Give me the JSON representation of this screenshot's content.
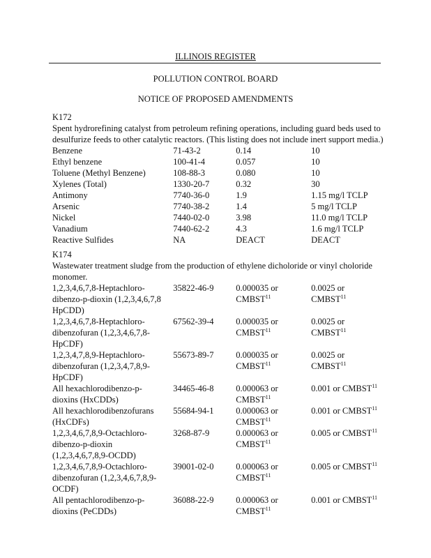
{
  "header": {
    "register": "ILLINOIS REGISTER",
    "board": "POLLUTION CONTROL BOARD",
    "notice": "NOTICE OF PROPOSED AMENDMENTS"
  },
  "k172": {
    "code": "K172",
    "description": [
      "Spent hydrorefining catalyst from petroleum refining operations, including guard beds used to",
      "desulfurize feeds to other catalytic reactors.  (This listing does not include inert support media.)"
    ],
    "rows": [
      {
        "name": "Benzene",
        "cas": "71-43-2",
        "ww": "0.14",
        "nww": "10"
      },
      {
        "name": "Ethyl benzene",
        "cas": "100-41-4",
        "ww": "0.057",
        "nww": "10"
      },
      {
        "name": "Toluene (Methyl Benzene)",
        "cas": "108-88-3",
        "ww": "0.080",
        "nww": "10"
      },
      {
        "name": "Xylenes (Total)",
        "cas": "1330-20-7",
        "ww": "0.32",
        "nww": "30"
      },
      {
        "name": "Antimony",
        "cas": "7740-36-0",
        "ww": "1.9",
        "nww": "1.15 mg/l TCLP"
      },
      {
        "name": "Arsenic",
        "cas": "7740-38-2",
        "ww": "1.4",
        "nww": "5 mg/l TCLP"
      },
      {
        "name": "Nickel",
        "cas": "7440-02-0",
        "ww": "3.98",
        "nww": "11.0 mg/l TCLP"
      },
      {
        "name": "Vanadium",
        "cas": "7440-62-2",
        "ww": "4.3",
        "nww": "1.6 mg/l TCLP"
      },
      {
        "name": "Reactive Sulfides",
        "cas": "NA",
        "ww": "DEACT",
        "nww": "DEACT"
      }
    ]
  },
  "k174": {
    "code": "K174",
    "description": [
      "Wastewater treatment sludge from the production of ethylene dicholoride or vinyl choloride",
      "monomer."
    ],
    "superscript": "11",
    "rows": [
      {
        "name": [
          "1,2,3,4,6,7,8-Heptachloro-",
          "dibenzo-p-dioxin (1,2,3,4,6,7,8",
          "HpCDD)"
        ],
        "cas": "35822-46-9",
        "ww": [
          "0.000035 or",
          "CMBST"
        ],
        "nww": [
          "0.0025 or",
          "CMBST"
        ]
      },
      {
        "name": [
          "1,2,3,4,6,7,8-Heptachloro-",
          "dibenzofuran (1,2,3,4,6,7,8-",
          "HpCDF)"
        ],
        "cas": "67562-39-4",
        "ww": [
          "0.000035 or",
          "CMBST"
        ],
        "nww": [
          "0.0025 or",
          "CMBST"
        ]
      },
      {
        "name": [
          "1,2,3,4,7,8,9-Heptachloro-",
          "dibenzofuran (1,2,3,4,7,8,9-",
          "HpCDF)"
        ],
        "cas": "55673-89-7",
        "ww": [
          "0.000035 or",
          "CMBST"
        ],
        "nww": [
          "0.0025 or",
          "CMBST"
        ]
      },
      {
        "name": [
          "All hexachlorodibenzo-p-",
          "dioxins (HxCDDs)"
        ],
        "cas": "34465-46-8",
        "ww": [
          "0.000063 or",
          "CMBST"
        ],
        "nww": [
          "0.001 or CMBST"
        ]
      },
      {
        "name": [
          "All hexachlorodibenzofurans",
          "(HxCDFs)"
        ],
        "cas": "55684-94-1",
        "ww": [
          "0.000063 or",
          "CMBST"
        ],
        "nww": [
          "0.001 or CMBST"
        ]
      },
      {
        "name": [
          "1,2,3,4,6,7,8,9-Octachloro-",
          "dibenzo-p-dioxin",
          "(1,2,3,4,6,7,8,9-OCDD)"
        ],
        "cas": "3268-87-9",
        "ww": [
          "0.000063 or",
          "CMBST"
        ],
        "nww": [
          "0.005 or CMBST"
        ]
      },
      {
        "name": [
          "1,2,3,4,6,7,8,9-Octachloro-",
          "dibenzofuran (1,2,3,4,6,7,8,9-",
          "OCDF)"
        ],
        "cas": "39001-02-0",
        "ww": [
          "0.000063 or",
          "CMBST"
        ],
        "nww": [
          "0.005 or CMBST"
        ]
      },
      {
        "name": [
          "All pentachlorodibenzo-p-",
          "dioxins (PeCDDs)"
        ],
        "cas": "36088-22-9",
        "ww": [
          "0.000063 or",
          "CMBST"
        ],
        "nww": [
          "0.001 or CMBST"
        ]
      }
    ]
  }
}
